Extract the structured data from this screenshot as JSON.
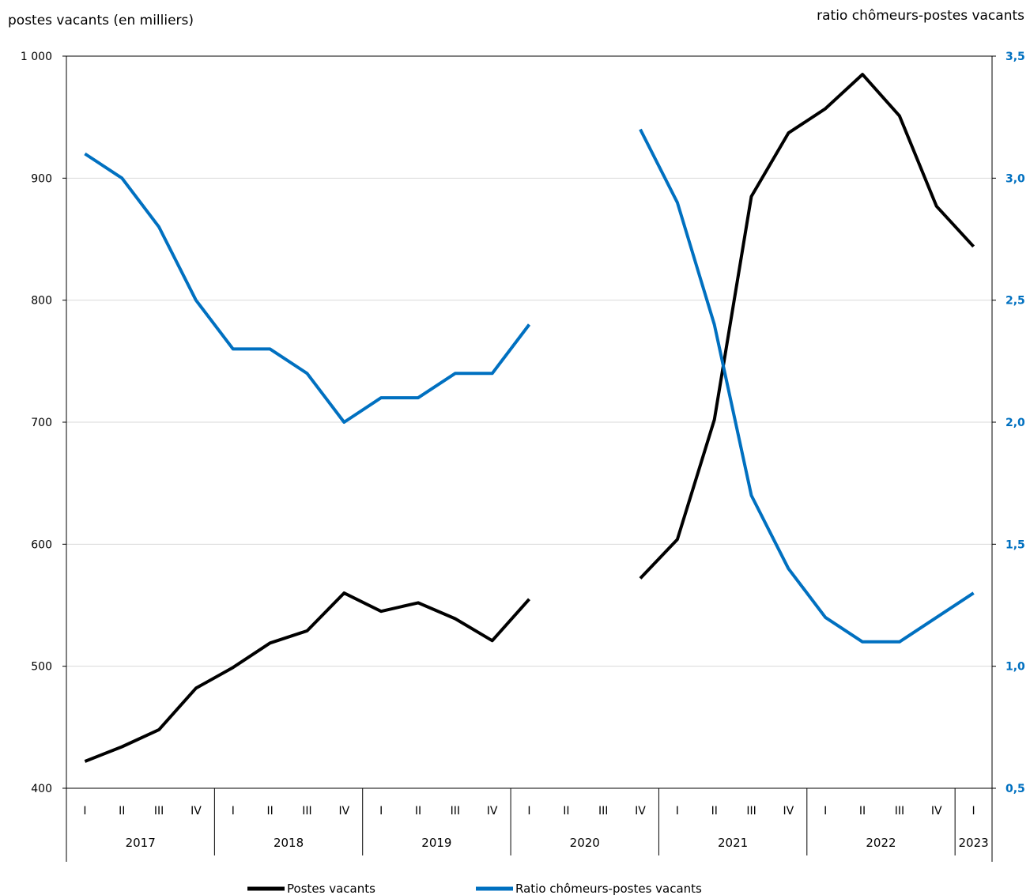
{
  "chart_data": {
    "type": "line",
    "left_axis_title": "postes vacants (en milliers)",
    "right_axis_title": "ratio chômeurs-postes vacants",
    "left_ylim": [
      400,
      1000
    ],
    "left_ticks": [
      400,
      500,
      600,
      700,
      800,
      900,
      1000
    ],
    "left_tick_labels": [
      "400",
      "500",
      "600",
      "700",
      "800",
      "900",
      "1 000"
    ],
    "right_ylim": [
      0.5,
      3.5
    ],
    "right_ticks": [
      0.5,
      1.0,
      1.5,
      2.0,
      2.5,
      3.0,
      3.5
    ],
    "right_tick_labels": [
      "0,5",
      "1,0",
      "1,5",
      "2,0",
      "2,5",
      "3,0",
      "3,5"
    ],
    "grid": "horizontal",
    "legend_position": "bottom",
    "quarter_labels": [
      "I",
      "II",
      "III",
      "IV",
      "I",
      "II",
      "III",
      "IV",
      "I",
      "II",
      "III",
      "IV",
      "I",
      "II",
      "III",
      "IV",
      "I",
      "II",
      "III",
      "IV",
      "I",
      "II",
      "III",
      "IV",
      "I"
    ],
    "years": [
      {
        "label": "2017",
        "quarters": 4
      },
      {
        "label": "2018",
        "quarters": 4
      },
      {
        "label": "2019",
        "quarters": 4
      },
      {
        "label": "2020",
        "quarters": 4
      },
      {
        "label": "2021",
        "quarters": 4
      },
      {
        "label": "2022",
        "quarters": 4
      },
      {
        "label": "2023",
        "quarters": 1
      }
    ],
    "series": [
      {
        "name": "Postes vacants",
        "axis": "left",
        "color": "#000000",
        "values": [
          422,
          434,
          448,
          482,
          499,
          519,
          529,
          560,
          545,
          552,
          539,
          521,
          555,
          null,
          null,
          572,
          604,
          702,
          885,
          937,
          957,
          985,
          951,
          877,
          844
        ]
      },
      {
        "name": "Ratio chômeurs-postes vacants",
        "axis": "right",
        "color": "#0070c0",
        "values": [
          3.1,
          3.0,
          2.8,
          2.5,
          2.3,
          2.3,
          2.2,
          2.0,
          2.1,
          2.1,
          2.2,
          2.2,
          2.4,
          null,
          null,
          3.2,
          2.9,
          2.4,
          1.7,
          1.4,
          1.2,
          1.1,
          1.1,
          1.2,
          1.3
        ]
      }
    ]
  }
}
